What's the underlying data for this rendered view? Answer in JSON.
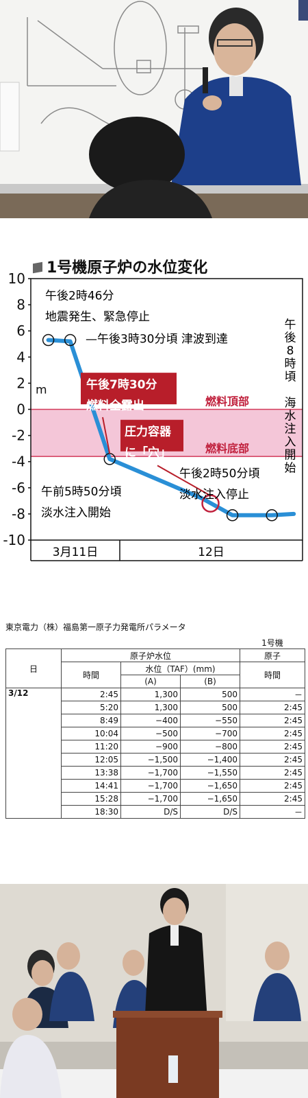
{
  "chart_data": {
    "type": "line",
    "title": "1号機原子炉の水位変化",
    "ylabel": "m",
    "ylim": [
      -10,
      10
    ],
    "yticks": [
      "10",
      "8",
      "6",
      "4",
      "2",
      "0",
      "-2",
      "-4",
      "-6",
      "-8",
      "-10"
    ],
    "x_groups": [
      "3月11日",
      "12日"
    ],
    "bands": [
      {
        "label_top": "燃料頂部",
        "label_bottom": "燃料底部",
        "from": -3.6,
        "to": 0,
        "color": "#f4c6d8"
      }
    ],
    "series": [
      {
        "values_note": "",
        "color": "#2a8fd6"
      }
    ],
    "points_desc": [
      {
        "x": 0.4,
        "y": 5.3
      },
      {
        "x": 0.9,
        "y": 5.2
      },
      {
        "x": 1.8,
        "y": -3.8
      },
      {
        "x": 3.9,
        "y": -6.8
      },
      {
        "x": 4.6,
        "y": -8.1
      },
      {
        "x": 5.5,
        "y": -8.1
      },
      {
        "x": 6.0,
        "y": -8.0
      }
    ],
    "annotations": [
      {
        "text": "午後2時46分",
        "sub": "地震発生、緊急停止"
      },
      {
        "text": "午後3時30分頃",
        "sub": "津波到達"
      },
      {
        "text": "午後7時30分",
        "sub": "燃料全露出"
      },
      {
        "text": "圧力容器",
        "sub": "に「穴」"
      },
      {
        "text": "午後2時50分頃",
        "sub": "淡水注入停止"
      },
      {
        "text": "午前5時50分頃",
        "sub": "淡水注入開始"
      },
      {
        "text": "午後8時頃",
        "sub": "海水注入開始"
      }
    ]
  },
  "table": {
    "caption": "東京電力（株）福島第一原子力発電所パラメータ",
    "unit_header": "1号機",
    "group_header": "原子炉水位",
    "group_header2": "原子",
    "col_date": "日",
    "col_time": "時間",
    "col_level": "水位（TAF）(mm)",
    "col_a": "(A)",
    "col_b": "(B)",
    "col_time2": "時間",
    "date": "3/12",
    "rows": [
      {
        "time": "2:45",
        "a": "1,300",
        "b": "500",
        "t2": "－"
      },
      {
        "time": "5:20",
        "a": "1,300",
        "b": "500",
        "t2": "2:45"
      },
      {
        "time": "8:49",
        "a": "−400",
        "b": "−550",
        "t2": "2:45"
      },
      {
        "time": "10:04",
        "a": "−500",
        "b": "−700",
        "t2": "2:45"
      },
      {
        "time": "11:20",
        "a": "−900",
        "b": "−800",
        "t2": "2:45"
      },
      {
        "time": "12:05",
        "a": "−1,500",
        "b": "−1,400",
        "t2": "2:45"
      },
      {
        "time": "13:38",
        "a": "−1,700",
        "b": "−1,550",
        "t2": "2:45"
      },
      {
        "time": "14:41",
        "a": "−1,700",
        "b": "−1,650",
        "t2": "2:45"
      },
      {
        "time": "15:28",
        "a": "−1,700",
        "b": "−1,650",
        "t2": "2:45"
      },
      {
        "time": "18:30",
        "a": "D/S",
        "b": "D/S",
        "t2": "－"
      }
    ]
  }
}
